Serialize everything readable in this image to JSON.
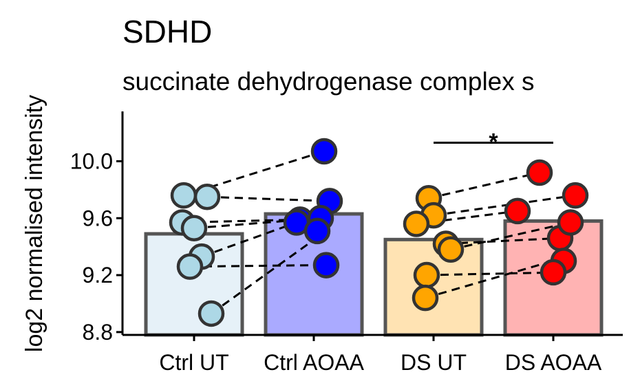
{
  "chart_data": {
    "type": "bar",
    "title": "SDHD",
    "subtitle": "succinate dehydrogenase complex s",
    "ylabel": "log2 normalised intensity",
    "xlabel": "",
    "categories": [
      "Ctrl UT",
      "Ctrl AOAA",
      "DS UT",
      "DS AOAA"
    ],
    "values": [
      9.49,
      9.63,
      9.45,
      9.58
    ],
    "ylim": [
      8.78,
      10.35
    ],
    "yticks": [
      8.8,
      9.2,
      9.6,
      10.0
    ],
    "ytick_labels": [
      "8.8",
      "9.2",
      "9.6",
      "10.0"
    ],
    "grid": false,
    "legend": "none",
    "bar_fill_colors": [
      "#e6f1f8",
      "#aaaaff",
      "#ffe3b3",
      "#ffb3b3"
    ],
    "point_colors": [
      "#add8e6",
      "#0000ff",
      "#ffa500",
      "#ff0000"
    ],
    "bar_stroke_color": "#555555",
    "points": [
      [
        9.76,
        9.75,
        9.57,
        9.53,
        9.33,
        9.26,
        8.93
      ],
      [
        10.07,
        9.72,
        9.59,
        9.6,
        9.57,
        9.51,
        9.27
      ],
      [
        9.74,
        9.62,
        9.56,
        9.42,
        9.38,
        9.2,
        9.04
      ],
      [
        9.92,
        9.76,
        9.65,
        9.46,
        9.57,
        9.3,
        9.22
      ]
    ],
    "pair_lines": [
      [
        9.76,
        10.07
      ],
      [
        9.75,
        9.72
      ],
      [
        9.57,
        9.59
      ],
      [
        9.53,
        9.6
      ],
      [
        9.33,
        9.57
      ],
      [
        9.26,
        9.27
      ],
      [
        8.93,
        9.51
      ],
      [
        9.74,
        9.92
      ],
      [
        9.62,
        9.76
      ],
      [
        9.56,
        9.65
      ],
      [
        9.42,
        9.46
      ],
      [
        9.38,
        9.57
      ],
      [
        9.2,
        9.22
      ],
      [
        9.04,
        9.3
      ]
    ],
    "significance": {
      "from": "DS UT",
      "to": "DS AOAA",
      "y": 10.13,
      "label": "*"
    }
  }
}
